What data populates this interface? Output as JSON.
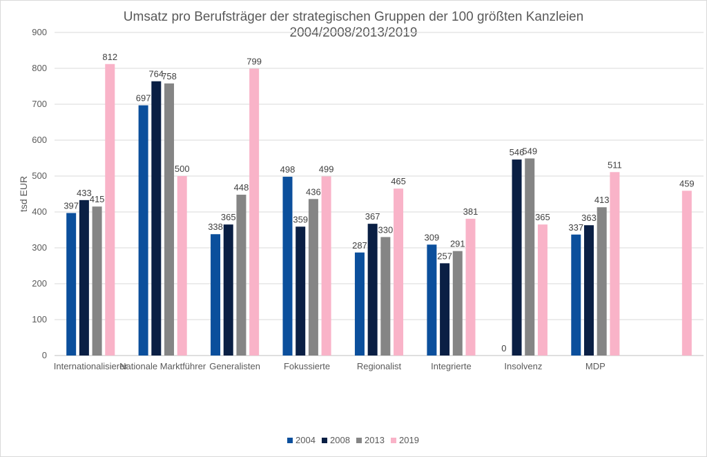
{
  "chart_data": {
    "type": "bar",
    "title": "Umsatz pro Berufsträger der strategischen Gruppen der 100 größten Kanzleien",
    "subtitle": "2004/2008/2013/2019",
    "xlabel": "",
    "ylabel": "tsd EUR",
    "ylim": [
      0,
      900
    ],
    "yticks": [
      "0",
      "100",
      "200",
      "300",
      "400",
      "500",
      "600",
      "700",
      "800",
      "900"
    ],
    "grid": true,
    "legend_position": "bottom",
    "categories": [
      "Internationalisierer",
      "Nationale Marktführer",
      "Generalisten",
      "Fokussierte",
      "Regionalist",
      "Integrierte",
      "Insolvenz",
      "MDP",
      ""
    ],
    "series": [
      {
        "name": "2004",
        "color": "#0b4f9c",
        "values": [
          397,
          697,
          338,
          498,
          287,
          309,
          0,
          337,
          null
        ]
      },
      {
        "name": "2008",
        "color": "#0a1f44",
        "values": [
          433,
          764,
          365,
          359,
          367,
          257,
          546,
          363,
          null
        ]
      },
      {
        "name": "2013",
        "color": "#858585",
        "values": [
          415,
          758,
          448,
          436,
          330,
          291,
          549,
          413,
          null
        ]
      },
      {
        "name": "2019",
        "color": "#f9b3c8",
        "values": [
          812,
          500,
          799,
          499,
          465,
          381,
          365,
          511,
          459
        ]
      }
    ]
  }
}
